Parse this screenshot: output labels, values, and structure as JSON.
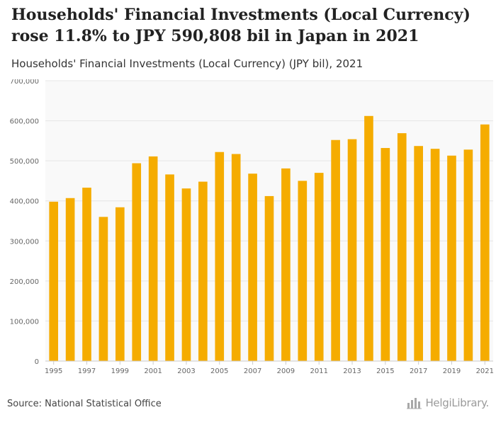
{
  "header": {
    "title": "Households' Financial Investments (Local Currency) rose 11.8% to JPY 590,808 bil in Japan in 2021",
    "subtitle": "Households' Financial Investments (Local Currency) (JPY bil), 2021"
  },
  "footer": {
    "source": "Source: National Statistical Office",
    "brand": "HelgiLibrary.",
    "brand_icon": "bar-chart-icon"
  },
  "colors": {
    "bar": "#F5AC00",
    "plot_bg": "#F9F9F9",
    "grid": "#E6E6E6",
    "tick_text": "#666666"
  },
  "chart_data": {
    "type": "bar",
    "title": "Households' Financial Investments (Local Currency) (JPY bil), 2021",
    "xlabel": "",
    "ylabel": "",
    "ylim": [
      0,
      700000
    ],
    "yticks": [
      0,
      100000,
      200000,
      300000,
      400000,
      500000,
      600000,
      700000
    ],
    "ytick_labels": [
      "0",
      "100,000",
      "200,000",
      "300,000",
      "400,000",
      "500,000",
      "600,000",
      "700,000"
    ],
    "grid": true,
    "categories": [
      "1995",
      "1996",
      "1997",
      "1998",
      "1999",
      "2000",
      "2001",
      "2002",
      "2003",
      "2004",
      "2005",
      "2006",
      "2007",
      "2008",
      "2009",
      "2010",
      "2011",
      "2012",
      "2013",
      "2014",
      "2015",
      "2016",
      "2017",
      "2018",
      "2019",
      "2020",
      "2021"
    ],
    "xtick_labels": [
      "1995",
      "1997",
      "1999",
      "2001",
      "2003",
      "2005",
      "2007",
      "2009",
      "2011",
      "2013",
      "2015",
      "2017",
      "2019",
      "2021"
    ],
    "values": [
      398000,
      407000,
      433000,
      360000,
      384000,
      494000,
      511000,
      466000,
      431000,
      448000,
      522000,
      517000,
      468000,
      412000,
      481000,
      450000,
      470000,
      552000,
      554000,
      612000,
      532000,
      569000,
      537000,
      530000,
      513000,
      528000,
      590808
    ]
  }
}
